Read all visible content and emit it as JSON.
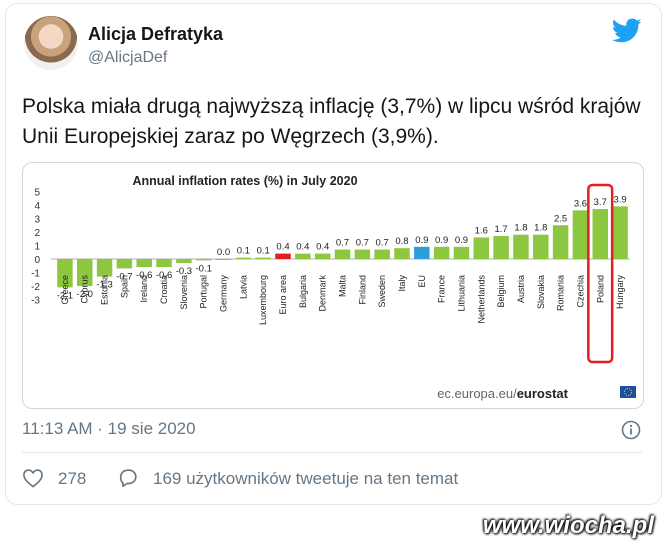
{
  "tweet": {
    "author_name": "Alicja Defratyka",
    "author_handle": "@AlicjaDef",
    "text": "Polska miała drugą najwyższą inflację (3,7%) w lipcu wśród krajów Unii Europejskiej zaraz po Węgrzech (3,9%).",
    "timestamp": "11:13 AM · 19 sie 2020",
    "like_count": "278",
    "retweet_text": "169 użytkowników tweetuje na ten temat"
  },
  "watermark": "www.wiocha.pl",
  "source_label": "ec.europa.eu/",
  "source_brand": "eurostat",
  "icons": [
    "twitter-bird-icon",
    "info-icon",
    "heart-icon",
    "speech-bubble-icon",
    "eu-flag-icon"
  ],
  "colors": {
    "bar": "#8dc63f",
    "euro_area": "#e31e24",
    "eu": "#2a9fd8",
    "highlight": "#e31e24",
    "twitter_blue": "#1da1f2"
  },
  "chart_data": {
    "type": "bar",
    "title": "Annual inflation rates (%) in July 2020",
    "categories": [
      "Greece",
      "Cyprus",
      "Estonia",
      "Spain",
      "Ireland",
      "Croatia",
      "Slovenia",
      "Portugal",
      "Germany",
      "Latvia",
      "Luxembourg",
      "Euro area",
      "Bulgaria",
      "Denmark",
      "Malta",
      "Finland",
      "Sweden",
      "Italy",
      "EU",
      "France",
      "Lithuania",
      "Netherlands",
      "Belgium",
      "Austria",
      "Slovakia",
      "Romania",
      "Czechia",
      "Poland",
      "Hungary"
    ],
    "values": [
      -2.1,
      -2.0,
      -1.3,
      -0.7,
      -0.6,
      -0.6,
      -0.3,
      -0.1,
      0.0,
      0.1,
      0.1,
      0.4,
      0.4,
      0.4,
      0.7,
      0.7,
      0.7,
      0.8,
      0.9,
      0.9,
      0.9,
      1.6,
      1.7,
      1.8,
      1.8,
      2.5,
      3.6,
      3.7,
      3.9
    ],
    "value_labels": [
      "-2.1",
      "-2.0",
      "-1.3",
      "-0.7",
      "-0.6",
      "-0.6",
      "-0.3",
      "-0.1",
      "0.0",
      "0.1",
      "0.1",
      "0.4",
      "0.4",
      "0.4",
      "0.7",
      "0.7",
      "0.7",
      "0.8",
      "0.9",
      "0.9",
      "0.9",
      "1.6",
      "1.7",
      "1.8",
      "1.8",
      "2.5",
      "3.6",
      "3.7",
      "3.9"
    ],
    "yticks": [
      "5",
      "4",
      "3",
      "2",
      "1",
      "0",
      "-1",
      "-2",
      "-3"
    ],
    "ylim": [
      -3,
      5
    ],
    "highlighted_category": "Poland",
    "grid": false,
    "legend": "none"
  }
}
